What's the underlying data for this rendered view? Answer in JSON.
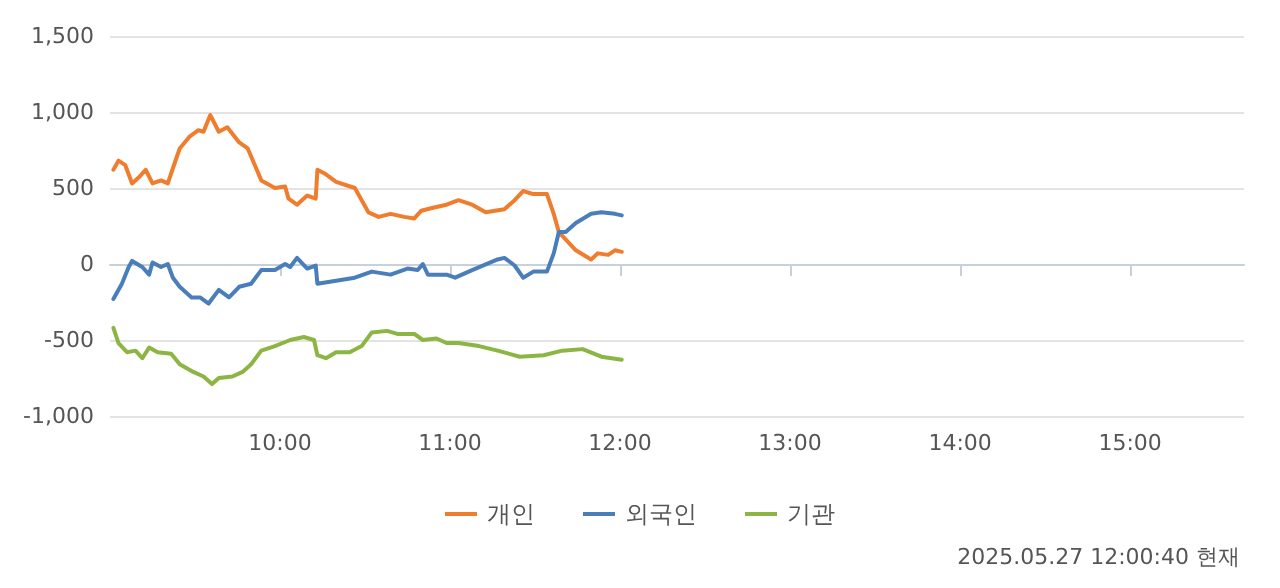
{
  "chart_data": {
    "type": "line",
    "xlim": [
      9,
      15.67
    ],
    "xticks": [
      {
        "value": 10,
        "label": "10:00"
      },
      {
        "value": 11,
        "label": "11:00"
      },
      {
        "value": 12,
        "label": "12:00"
      },
      {
        "value": 13,
        "label": "13:00"
      },
      {
        "value": 14,
        "label": "14:00"
      },
      {
        "value": 15,
        "label": "15:00"
      }
    ],
    "ylim": [
      -1000,
      1500
    ],
    "yticks": [
      {
        "value": -1000,
        "label": "-1,000"
      },
      -500,
      0,
      500,
      {
        "value": 1000,
        "label": "1,000"
      },
      {
        "value": 1500,
        "label": "1,500"
      }
    ],
    "grid": "y",
    "legend": "bottom",
    "marker": "none",
    "line_style": "solid",
    "annotations": [
      "2025.05.27 12:00:40 현재"
    ],
    "series": [
      {
        "name": "개인",
        "color": "#f07d2e",
        "x": [
          9.02,
          9.05,
          9.09,
          9.13,
          9.17,
          9.21,
          9.25,
          9.3,
          9.34,
          9.37,
          9.41,
          9.47,
          9.52,
          9.55,
          9.59,
          9.64,
          9.69,
          9.76,
          9.81,
          9.89,
          9.97,
          10.03,
          10.05,
          10.1,
          10.16,
          10.21,
          10.22,
          10.27,
          10.33,
          10.44,
          10.52,
          10.58,
          10.65,
          10.73,
          10.79,
          10.83,
          10.9,
          10.98,
          11.05,
          11.13,
          11.21,
          11.32,
          11.38,
          11.43,
          11.49,
          11.57,
          11.61,
          11.64,
          11.74,
          11.83,
          11.87,
          11.93,
          11.97,
          12.01
        ],
        "values": [
          620,
          680,
          650,
          530,
          570,
          620,
          530,
          550,
          530,
          630,
          760,
          840,
          880,
          870,
          980,
          870,
          900,
          800,
          760,
          550,
          500,
          510,
          430,
          390,
          450,
          430,
          620,
          590,
          540,
          500,
          340,
          310,
          330,
          310,
          300,
          350,
          370,
          390,
          420,
          390,
          340,
          360,
          420,
          480,
          460,
          460,
          330,
          210,
          90,
          30,
          70,
          60,
          90,
          80
        ]
      },
      {
        "name": "외국인",
        "color": "#4a7ebb",
        "x": [
          9.02,
          9.07,
          9.11,
          9.13,
          9.19,
          9.23,
          9.25,
          9.3,
          9.34,
          9.37,
          9.41,
          9.48,
          9.53,
          9.58,
          9.64,
          9.7,
          9.76,
          9.83,
          9.89,
          9.97,
          10.03,
          10.06,
          10.1,
          10.16,
          10.21,
          10.22,
          10.33,
          10.44,
          10.54,
          10.65,
          10.75,
          10.81,
          10.84,
          10.87,
          10.98,
          11.03,
          11.13,
          11.28,
          11.32,
          11.38,
          11.43,
          11.49,
          11.57,
          11.61,
          11.64,
          11.68,
          11.74,
          11.83,
          11.89,
          11.97,
          12.01
        ],
        "values": [
          -230,
          -130,
          -20,
          20,
          -20,
          -70,
          10,
          -20,
          0,
          -90,
          -150,
          -220,
          -220,
          -260,
          -170,
          -220,
          -150,
          -130,
          -40,
          -40,
          0,
          -20,
          40,
          -30,
          -10,
          -130,
          -110,
          -90,
          -50,
          -70,
          -30,
          -40,
          0,
          -70,
          -70,
          -90,
          -40,
          30,
          40,
          -10,
          -90,
          -50,
          -50,
          70,
          210,
          210,
          270,
          330,
          340,
          330,
          320
        ]
      },
      {
        "name": "기관",
        "color": "#8db543",
        "x": [
          9.02,
          9.05,
          9.1,
          9.15,
          9.19,
          9.23,
          9.28,
          9.36,
          9.41,
          9.49,
          9.55,
          9.6,
          9.64,
          9.72,
          9.78,
          9.83,
          9.89,
          9.97,
          10.06,
          10.14,
          10.2,
          10.22,
          10.27,
          10.33,
          10.41,
          10.48,
          10.54,
          10.63,
          10.69,
          10.79,
          10.84,
          10.92,
          10.98,
          11.05,
          11.17,
          11.28,
          11.41,
          11.55,
          11.66,
          11.78,
          11.89,
          12.01
        ],
        "values": [
          -420,
          -520,
          -580,
          -570,
          -620,
          -550,
          -580,
          -590,
          -660,
          -710,
          -740,
          -790,
          -750,
          -740,
          -710,
          -660,
          -570,
          -540,
          -500,
          -480,
          -500,
          -600,
          -620,
          -580,
          -580,
          -540,
          -450,
          -440,
          -460,
          -460,
          -500,
          -490,
          -520,
          -520,
          -540,
          -570,
          -610,
          -600,
          -570,
          -560,
          -610,
          -630
        ]
      }
    ]
  }
}
